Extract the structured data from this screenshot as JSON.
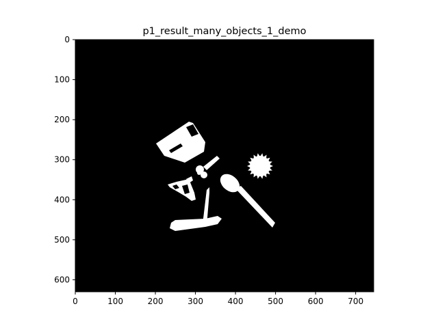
{
  "figure": {
    "title": "p1_result_many_objects_1_demo",
    "background_color": "#ffffff",
    "image_background_color": "#000000",
    "object_color": "#ffffff",
    "axis_color": "#000000"
  },
  "image_extent": {
    "width": 745,
    "height": 630
  },
  "x_axis": {
    "ticks": [
      0,
      100,
      200,
      300,
      400,
      500,
      600,
      700
    ],
    "tick_labels": [
      "0",
      "100",
      "200",
      "300",
      "400",
      "500",
      "600",
      "700"
    ]
  },
  "y_axis": {
    "ticks": [
      0,
      100,
      200,
      300,
      400,
      500,
      600
    ],
    "tick_labels": [
      "0",
      "100",
      "200",
      "300",
      "400",
      "500",
      "600"
    ]
  },
  "objects": [
    {
      "name": "object-shape-1",
      "kind": "stapler-like-block"
    },
    {
      "name": "object-shape-2",
      "kind": "key"
    },
    {
      "name": "object-shape-3",
      "kind": "gear"
    },
    {
      "name": "object-shape-4",
      "kind": "spoon"
    },
    {
      "name": "object-shape-5",
      "kind": "scissors"
    },
    {
      "name": "object-shape-6",
      "kind": "pen"
    },
    {
      "name": "object-shape-7",
      "kind": "toothbrush"
    }
  ]
}
